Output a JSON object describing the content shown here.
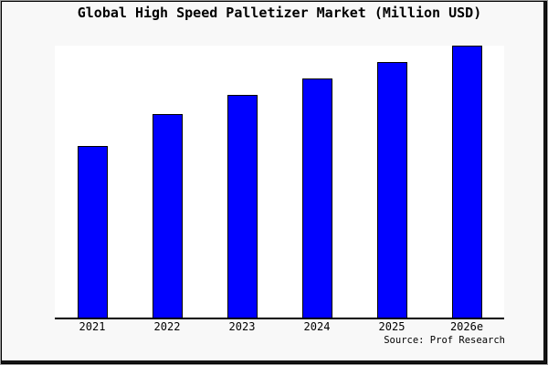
{
  "chart_data": {
    "type": "bar",
    "title": "Global High Speed Palletizer Market (Million USD)",
    "source": "Source: Prof Research",
    "categories": [
      "2021",
      "2022",
      "2023",
      "2024",
      "2025",
      "2026e"
    ],
    "values": [
      63,
      75,
      82,
      88,
      94,
      100
    ],
    "value_scale": "relative heights normalized to 2026e = 100; no y-axis tick labels are shown in the chart",
    "xlabel": "",
    "ylabel": "",
    "ylim": [
      0,
      100
    ],
    "grid": false,
    "legend": false,
    "bar_color": "#0000ff",
    "bar_edge_color": "#000000",
    "figure_background": "#f8f8f8",
    "plot_background": "#ffffff",
    "axis_color": "#000000"
  }
}
